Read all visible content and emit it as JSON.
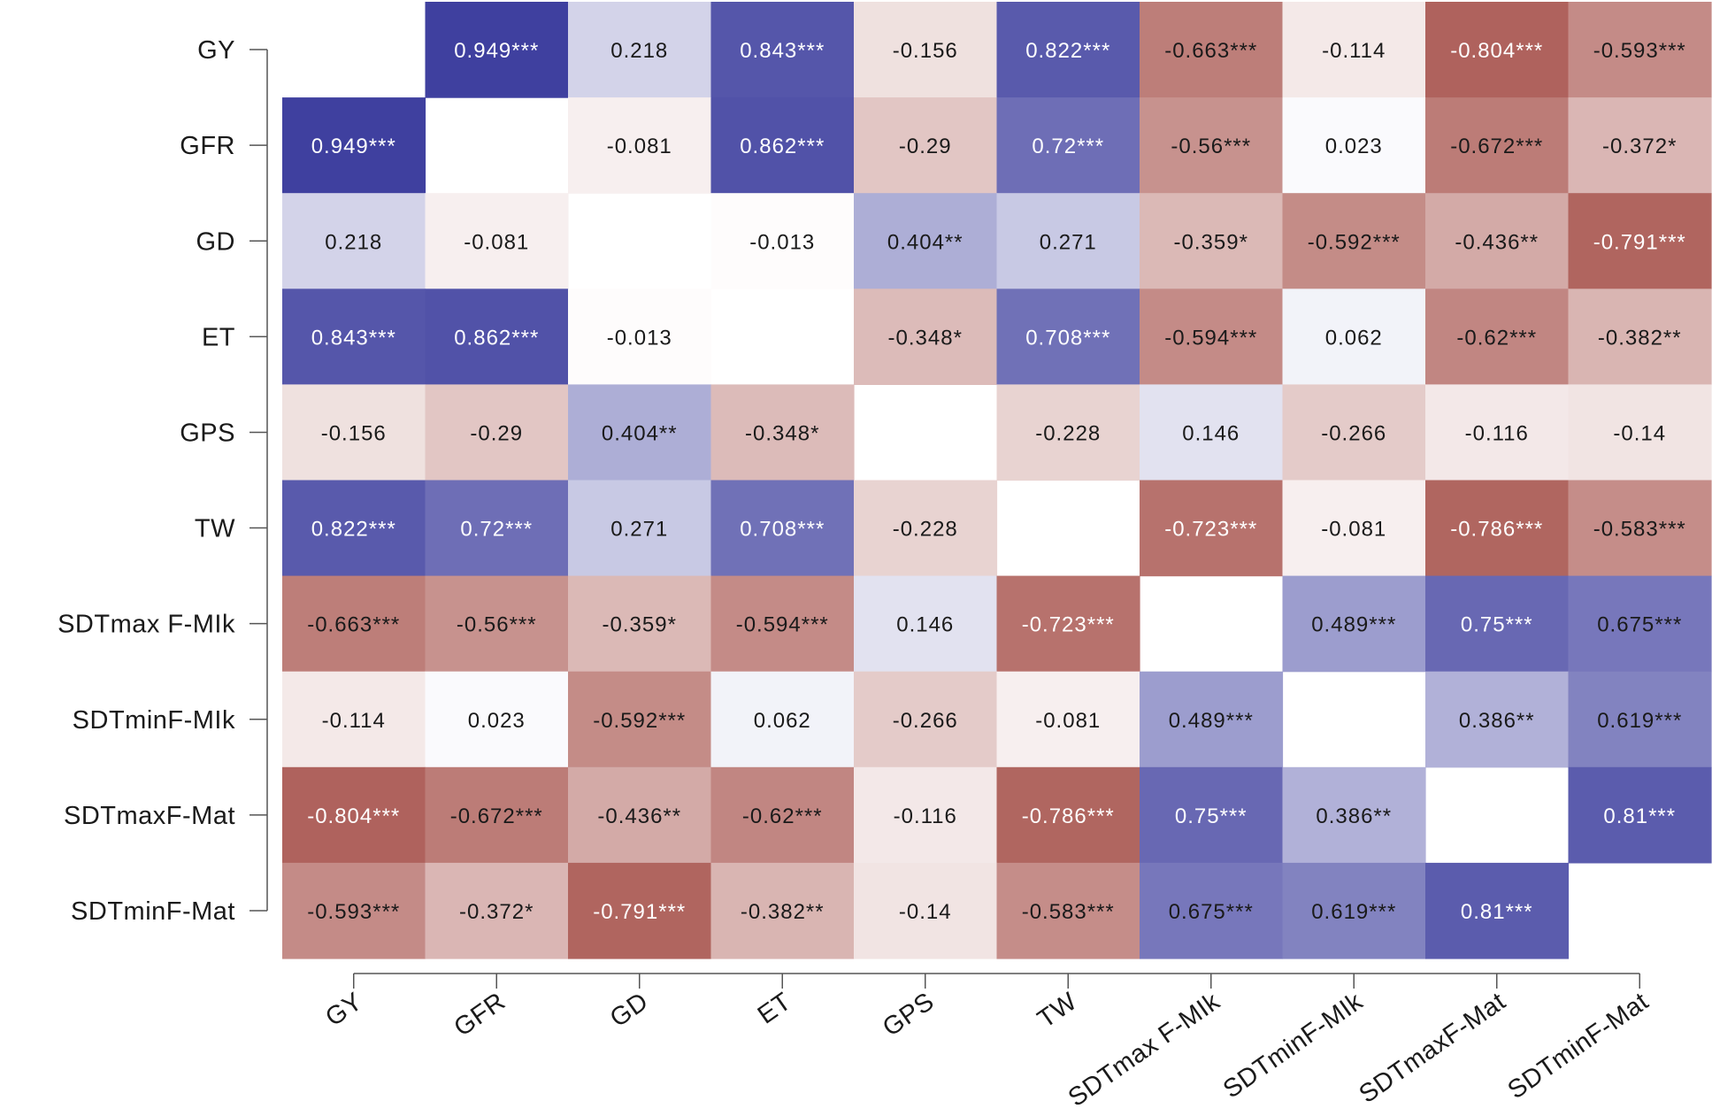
{
  "chart_data": {
    "type": "heatmap",
    "title": "",
    "xlabel": "",
    "ylabel": "",
    "variables": [
      "GY",
      "GFR",
      "GD",
      "ET",
      "GPS",
      "TW",
      "SDTmax F-MIk",
      "SDTminF-MIk",
      "SDTmaxF-Mat",
      "SDTminF-Mat"
    ],
    "diagonal": "blank",
    "color_scale": {
      "negative": "#9b3c35",
      "zero": "#ffffff",
      "positive": "#35369a",
      "range": [
        -1,
        1
      ]
    },
    "values": [
      [
        null,
        0.949,
        0.218,
        0.843,
        -0.156,
        0.822,
        -0.663,
        -0.114,
        -0.804,
        -0.593
      ],
      [
        0.949,
        null,
        -0.081,
        0.862,
        -0.29,
        0.72,
        -0.56,
        0.023,
        -0.672,
        -0.372
      ],
      [
        0.218,
        -0.081,
        null,
        -0.013,
        0.404,
        0.271,
        -0.359,
        -0.592,
        -0.436,
        -0.791
      ],
      [
        0.843,
        0.862,
        -0.013,
        null,
        -0.348,
        0.708,
        -0.594,
        0.062,
        -0.62,
        -0.382
      ],
      [
        -0.156,
        -0.29,
        0.404,
        -0.348,
        null,
        -0.228,
        0.146,
        -0.266,
        -0.116,
        -0.14
      ],
      [
        0.822,
        0.72,
        0.271,
        0.708,
        -0.228,
        null,
        -0.723,
        -0.081,
        -0.786,
        -0.583
      ],
      [
        -0.663,
        -0.56,
        -0.359,
        -0.594,
        0.146,
        -0.723,
        null,
        0.489,
        0.75,
        0.675
      ],
      [
        -0.114,
        0.023,
        -0.592,
        0.062,
        -0.266,
        -0.081,
        0.489,
        null,
        0.386,
        0.619
      ],
      [
        -0.804,
        -0.672,
        -0.436,
        -0.62,
        -0.116,
        -0.786,
        0.75,
        0.386,
        null,
        0.81
      ],
      [
        -0.593,
        -0.372,
        -0.791,
        -0.382,
        -0.14,
        -0.583,
        0.675,
        0.619,
        0.81,
        null
      ]
    ],
    "labels": [
      [
        "",
        "0.949***",
        "0.218",
        "0.843***",
        "-0.156",
        "0.822***",
        "-0.663***",
        "-0.114",
        "-0.804***",
        "-0.593***"
      ],
      [
        "0.949***",
        "",
        "-0.081",
        "0.862***",
        "-0.29",
        "0.72***",
        "-0.56***",
        "0.023",
        "-0.672***",
        "-0.372*"
      ],
      [
        "0.218",
        "-0.081",
        "",
        "-0.013",
        "0.404**",
        "0.271",
        "-0.359*",
        "-0.592***",
        "-0.436**",
        "-0.791***"
      ],
      [
        "0.843***",
        "0.862***",
        "-0.013",
        "",
        "-0.348*",
        "0.708***",
        "-0.594***",
        "0.062",
        "-0.62***",
        "-0.382**"
      ],
      [
        "-0.156",
        "-0.29",
        "0.404**",
        "-0.348*",
        "",
        "-0.228",
        "0.146",
        "-0.266",
        "-0.116",
        "-0.14"
      ],
      [
        "0.822***",
        "0.72***",
        "0.271",
        "0.708***",
        "-0.228",
        "",
        "-0.723***",
        "-0.081",
        "-0.786***",
        "-0.583***"
      ],
      [
        "-0.663***",
        "-0.56***",
        "-0.359*",
        "-0.594***",
        "0.146",
        "-0.723***",
        "",
        "0.489***",
        "0.75***",
        "0.675***"
      ],
      [
        "-0.114",
        "0.023",
        "-0.592***",
        "0.062",
        "-0.266",
        "-0.081",
        "0.489***",
        "",
        "0.386**",
        "0.619***"
      ],
      [
        "-0.804***",
        "-0.672***",
        "-0.436**",
        "-0.62***",
        "-0.116",
        "-0.786***",
        "0.75***",
        "0.386**",
        "",
        "0.81***"
      ],
      [
        "-0.593***",
        "-0.372*",
        "-0.791***",
        "-0.382**",
        "-0.14",
        "-0.583***",
        "0.675***",
        "0.619***",
        "0.81***",
        ""
      ]
    ]
  }
}
